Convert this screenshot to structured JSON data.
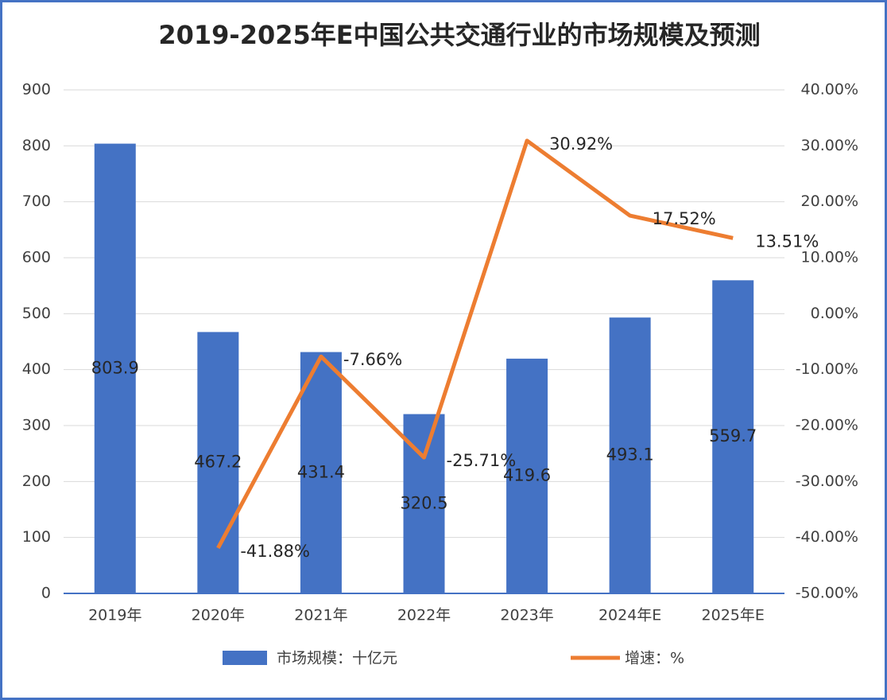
{
  "chart_data": {
    "type": "bar",
    "title": "2019-2025年E中国公共交通行业的市场规模及预测",
    "categories": [
      "2019年",
      "2020年",
      "2021年",
      "2022年",
      "2023年",
      "2024年E",
      "2025年E"
    ],
    "series": [
      {
        "name": "市场规模：十亿元",
        "type": "bar",
        "color": "#4472c4",
        "values": [
          803.9,
          467.2,
          431.4,
          320.5,
          419.6,
          493.1,
          559.7
        ]
      },
      {
        "name": "增速：%",
        "type": "line",
        "axis": "y2",
        "color": "#ed7d31",
        "values": [
          null,
          -41.88,
          -7.66,
          -25.71,
          30.92,
          17.52,
          13.51
        ],
        "value_labels": [
          null,
          "-41.88%",
          "-7.66%",
          "-25.71%",
          "30.92%",
          "17.52%",
          "13.51%"
        ]
      }
    ],
    "ylim": [
      0,
      900
    ],
    "yticks": [
      0,
      100,
      200,
      300,
      400,
      500,
      600,
      700,
      800,
      900
    ],
    "y2lim": [
      -50,
      40
    ],
    "y2ticks": [
      {
        "value": -50,
        "label": "-50.00%"
      },
      {
        "value": -40,
        "label": "-40.00%"
      },
      {
        "value": -30,
        "label": "-30.00%"
      },
      {
        "value": -20,
        "label": "-20.00%"
      },
      {
        "value": -10,
        "label": "-10.00%"
      },
      {
        "value": 0,
        "label": "0.00%"
      },
      {
        "value": 10,
        "label": "10.00%"
      },
      {
        "value": 20,
        "label": "20.00%"
      },
      {
        "value": 30,
        "label": "30.00%"
      },
      {
        "value": 40,
        "label": "40.00%"
      }
    ],
    "grid": true,
    "legend": "bottom"
  }
}
